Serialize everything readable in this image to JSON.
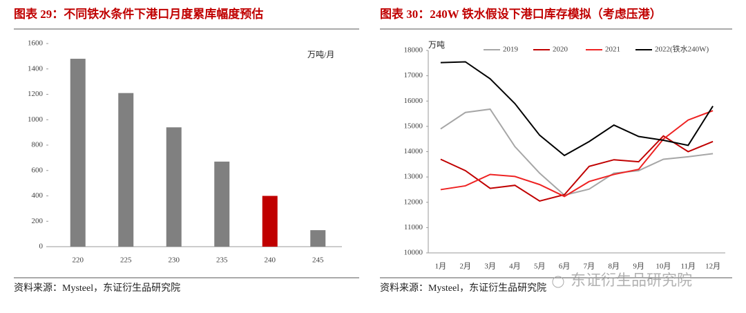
{
  "chart_data": [
    {
      "type": "bar",
      "title": "图表 29：不同铁水条件下港口月度累库幅度预估",
      "categories": [
        "220",
        "225",
        "230",
        "235",
        "240",
        "245"
      ],
      "values": [
        1480,
        1210,
        940,
        670,
        400,
        130
      ],
      "colors": [
        "#808080",
        "#808080",
        "#808080",
        "#808080",
        "#c00000",
        "#808080"
      ],
      "unit": "万吨/月",
      "ylim": [
        0,
        1600
      ],
      "yticks": [
        0,
        200,
        400,
        600,
        800,
        1000,
        1200,
        1400,
        1600
      ],
      "grid": false,
      "source": "资料来源：Mysteel，东证衍生品研究院"
    },
    {
      "type": "line",
      "title": "图表 30：240W 铁水假设下港口库存模拟（考虑压港）",
      "categories": [
        "1月",
        "2月",
        "3月",
        "4月",
        "5月",
        "6月",
        "7月",
        "8月",
        "9月",
        "10月",
        "11月",
        "12月"
      ],
      "series": [
        {
          "name": "2019",
          "color": "#a6a6a6",
          "values": [
            14900,
            15550,
            15680,
            14200,
            13150,
            12280,
            12520,
            13150,
            13250,
            13700,
            13800,
            13920
          ]
        },
        {
          "name": "2020",
          "color": "#c00000",
          "values": [
            13700,
            13250,
            12550,
            12670,
            12050,
            12300,
            13420,
            13680,
            13600,
            14620,
            14000,
            14400
          ]
        },
        {
          "name": "2021",
          "color": "#ee2222",
          "values": [
            12500,
            12650,
            13100,
            13020,
            12700,
            12230,
            12820,
            13100,
            13300,
            14500,
            15250,
            15620
          ]
        },
        {
          "name": "2022(铁水240W)",
          "color": "#000000",
          "values": [
            17520,
            17550,
            16880,
            15900,
            14650,
            13850,
            14400,
            15050,
            14600,
            14450,
            14250,
            15800
          ]
        }
      ],
      "unit": "万吨",
      "ylim": [
        10000,
        18000
      ],
      "yticks": [
        10000,
        11000,
        12000,
        13000,
        14000,
        15000,
        16000,
        17000,
        18000
      ],
      "grid": false,
      "legend": "top",
      "source": "资料来源：Mysteel，东证衍生品研究院"
    }
  ],
  "watermark": "东证衍生品研究院"
}
